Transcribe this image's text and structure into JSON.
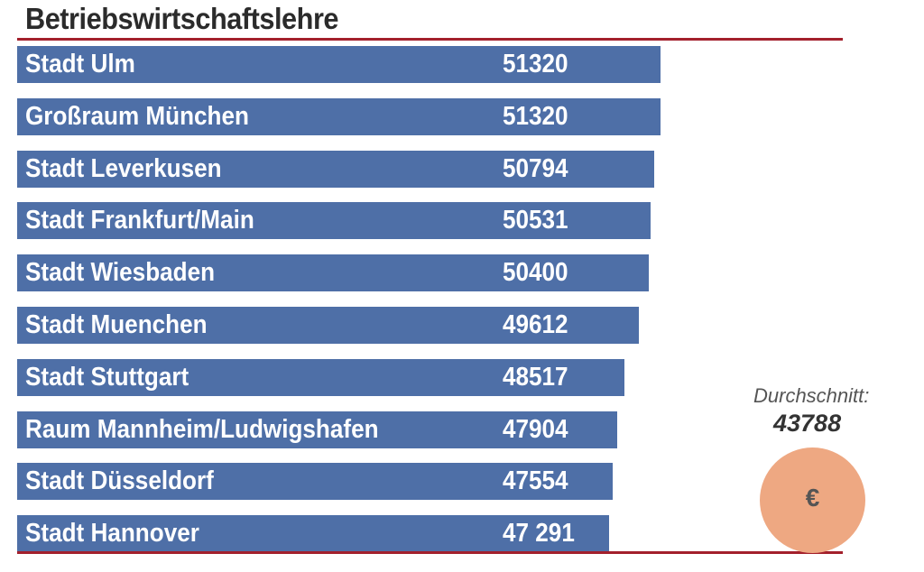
{
  "chart_data": {
    "type": "bar",
    "orientation": "horizontal",
    "title": "Betriebswirtschaftslehre",
    "categories": [
      "Stadt Ulm",
      "Großraum München",
      "Stadt Leverkusen",
      "Stadt Frankfurt/Main",
      "Stadt Wiesbaden",
      "Stadt Muenchen",
      "Stadt Stuttgart",
      "Raum Mannheim/Ludwigshafen",
      "Stadt Düsseldorf",
      "Stadt Hannover"
    ],
    "values": [
      51320,
      51320,
      50794,
      50531,
      50400,
      49612,
      48517,
      47904,
      47554,
      47291
    ],
    "value_labels": [
      "51320",
      "51320",
      "50794",
      "50531",
      "50400",
      "49612",
      "48517",
      "47904",
      "47554",
      "47 291"
    ],
    "bar_color": "#4e6fa7",
    "rule_color": "#a3202c",
    "average_label": "Durchschnitt:",
    "average_value": "43788",
    "average_icon": "euro-coin-icon",
    "average_icon_text": "€",
    "coin_color": "#eea882"
  }
}
